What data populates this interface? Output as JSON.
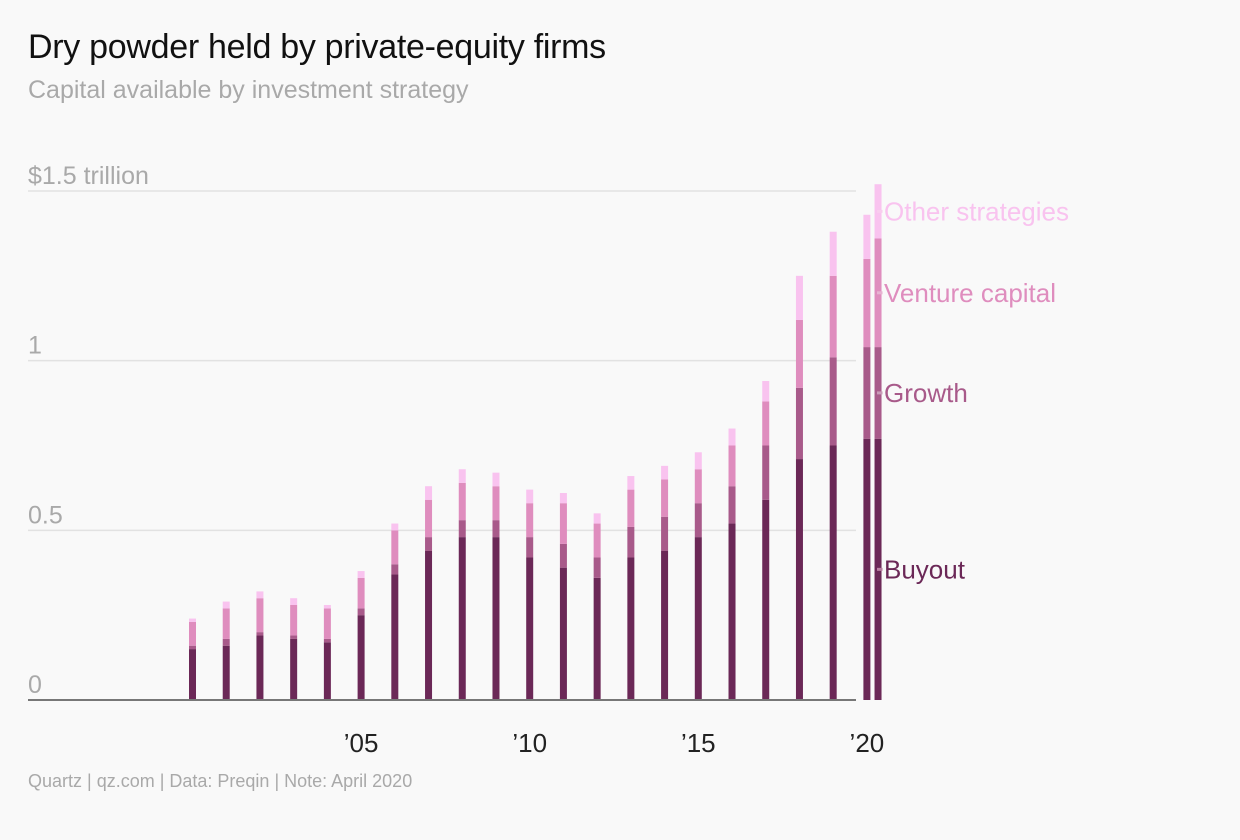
{
  "header": {
    "title": "Dry powder held by private-equity firms",
    "subtitle": "Capital available by investment strategy"
  },
  "footer": {
    "source": "Quartz | qz.com | Data: Preqin | Note: April 2020"
  },
  "colors": {
    "buyout": "#6b2857",
    "growth": "#a85a8a",
    "venture_capital": "#df8dbe",
    "other_strategies": "#f9c3ef",
    "grid": "#e2e2e2",
    "axis": "#777777",
    "tick_text": "#a9a9a9",
    "leader_buyout": "#b97fa2",
    "leader_growth": "#c99ab8",
    "leader_vc": "#e7b3d2",
    "leader_other": "#f8cdee"
  },
  "chart_data": {
    "type": "bar",
    "stacked": true,
    "title": "Dry powder held by private-equity firms",
    "subtitle": "Capital available by investment strategy",
    "xlabel": "",
    "ylabel": "",
    "ylim": [
      0,
      1.5
    ],
    "yticks": [
      {
        "value": 0,
        "label": "0"
      },
      {
        "value": 0.5,
        "label": "0.5"
      },
      {
        "value": 1,
        "label": "1"
      },
      {
        "value": 1.5,
        "label": "$1.5 trillion"
      }
    ],
    "xticks": [
      {
        "value": 2005,
        "label": "’05"
      },
      {
        "value": 2010,
        "label": "’10"
      },
      {
        "value": 2015,
        "label": "’15"
      },
      {
        "value": 2020,
        "label": "’20"
      }
    ],
    "grid": true,
    "legend": "direct labels at right",
    "x": [
      2000,
      2001,
      2002,
      2003,
      2004,
      2005,
      2006,
      2007,
      2008,
      2009,
      2010,
      2011,
      2012,
      2013,
      2014,
      2015,
      2016,
      2017,
      2018,
      2019,
      2020,
      2020.33
    ],
    "series": [
      {
        "name": "Buyout",
        "values": [
          0.15,
          0.16,
          0.19,
          0.18,
          0.17,
          0.25,
          0.37,
          0.44,
          0.48,
          0.48,
          0.42,
          0.39,
          0.36,
          0.42,
          0.44,
          0.48,
          0.52,
          0.59,
          0.71,
          0.75,
          0.77,
          0.77
        ]
      },
      {
        "name": "Growth",
        "values": [
          0.01,
          0.02,
          0.01,
          0.01,
          0.01,
          0.02,
          0.03,
          0.04,
          0.05,
          0.05,
          0.06,
          0.07,
          0.06,
          0.09,
          0.1,
          0.1,
          0.11,
          0.16,
          0.21,
          0.26,
          0.27,
          0.27
        ]
      },
      {
        "name": "Venture capital",
        "values": [
          0.07,
          0.09,
          0.1,
          0.09,
          0.09,
          0.09,
          0.1,
          0.11,
          0.11,
          0.1,
          0.1,
          0.12,
          0.1,
          0.11,
          0.11,
          0.1,
          0.12,
          0.13,
          0.2,
          0.24,
          0.26,
          0.32
        ]
      },
      {
        "name": "Other strategies",
        "values": [
          0.01,
          0.02,
          0.02,
          0.02,
          0.01,
          0.02,
          0.02,
          0.04,
          0.04,
          0.04,
          0.04,
          0.03,
          0.03,
          0.04,
          0.04,
          0.05,
          0.05,
          0.06,
          0.13,
          0.13,
          0.13,
          0.16
        ]
      }
    ],
    "series_labels": [
      "Buyout",
      "Growth",
      "Venture capital",
      "Other strategies"
    ]
  }
}
